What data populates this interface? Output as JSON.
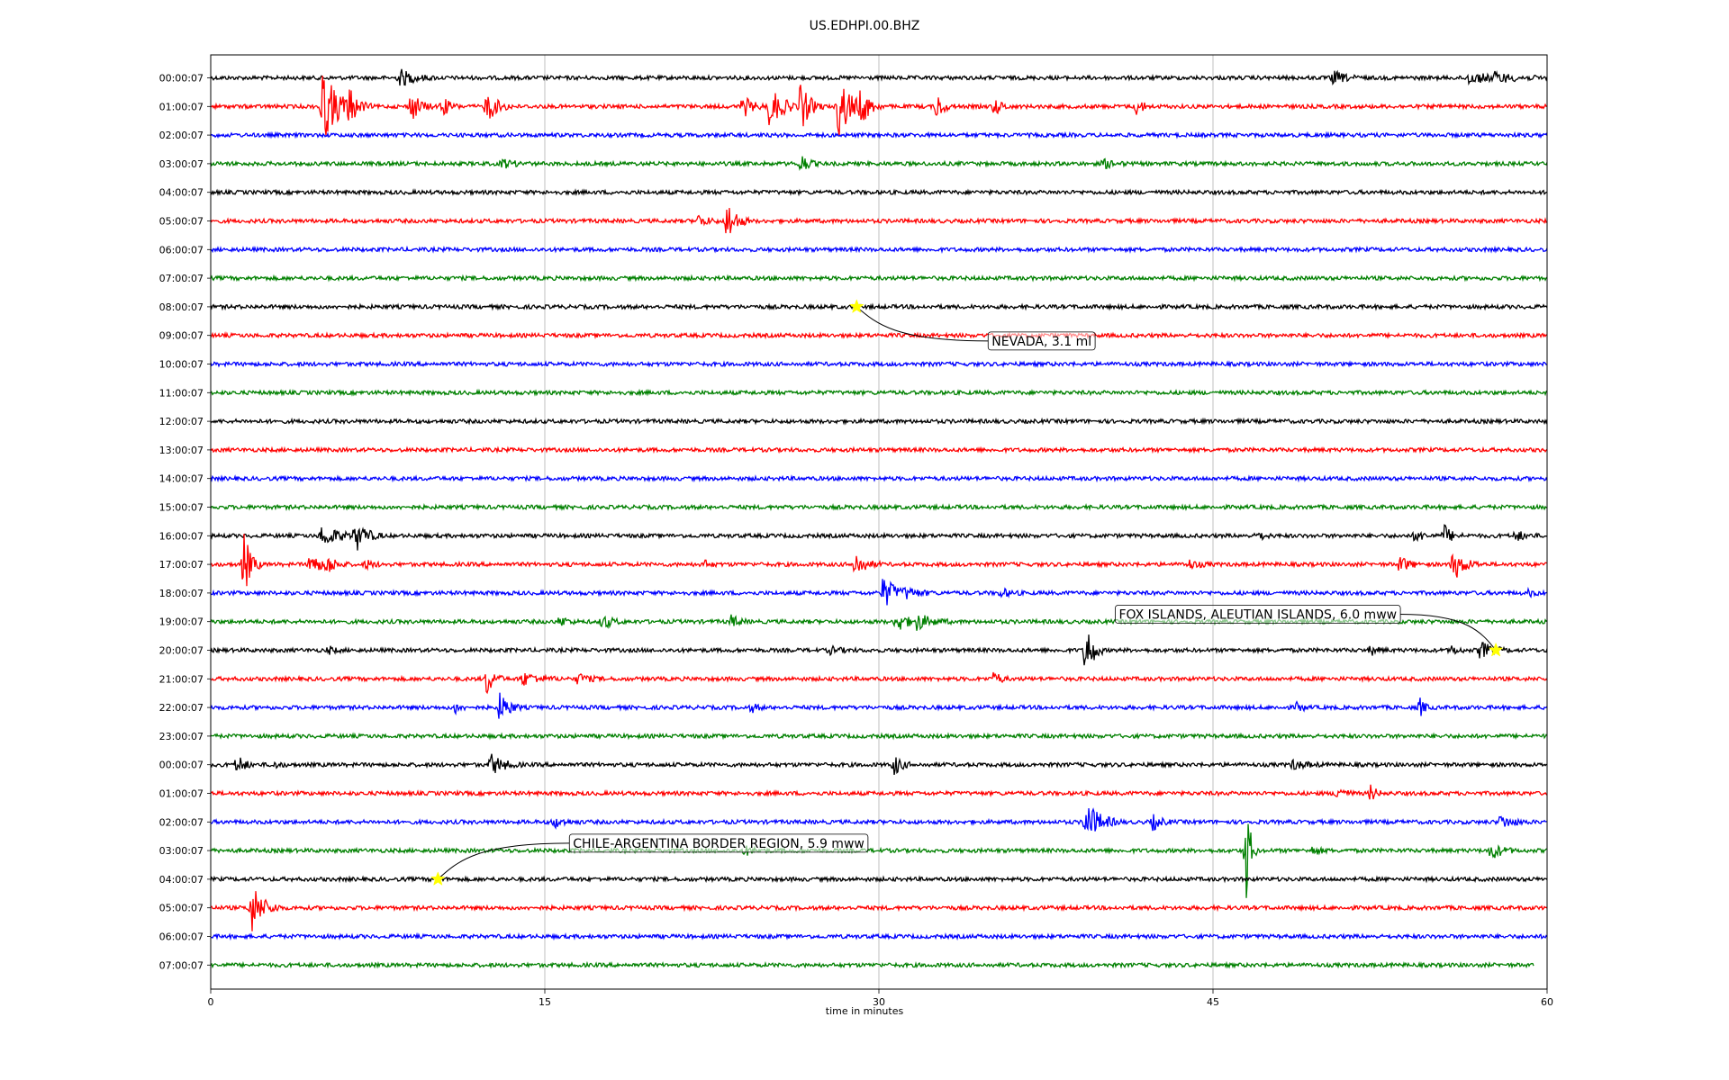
{
  "chart_data": {
    "type": "line",
    "title": "US.EDHPI.00.BHZ",
    "xlabel": "time in minutes",
    "xlim": [
      0,
      60
    ],
    "xticks": [
      "0",
      "15",
      "30",
      "45",
      "60"
    ],
    "grid": "vertical",
    "colors": [
      "#000000",
      "#ff0000",
      "#0000ff",
      "#008000"
    ],
    "rows": [
      {
        "label": "00:00:07",
        "color": "#000000",
        "bursts": [
          [
            8.5,
            1.6,
            0.8
          ],
          [
            50.4,
            1.4,
            0.6
          ],
          [
            56.4,
            3.0,
            0.5
          ],
          [
            57.6,
            2.4,
            0.5
          ]
        ]
      },
      {
        "label": "01:00:07",
        "color": "#ff0000",
        "bursts": [
          [
            5.0,
            2.0,
            3.5
          ],
          [
            6.2,
            1.0,
            2.0
          ],
          [
            9.0,
            1.0,
            1.5
          ],
          [
            10.4,
            0.8,
            1.0
          ],
          [
            12.4,
            1.2,
            1.5
          ],
          [
            23.9,
            1.1,
            1.0
          ],
          [
            25.1,
            1.5,
            2.0
          ],
          [
            26.5,
            1.0,
            2.5
          ],
          [
            28.2,
            1.5,
            3.0
          ],
          [
            29.2,
            1.0,
            2.0
          ],
          [
            32.6,
            0.8,
            1.2
          ],
          [
            35.2,
            0.8,
            0.8
          ],
          [
            41.6,
            0.6,
            1.0
          ]
        ]
      },
      {
        "label": "02:00:07",
        "color": "#0000ff",
        "bursts": []
      },
      {
        "label": "03:00:07",
        "color": "#008000",
        "bursts": [
          [
            13.1,
            1.3,
            0.4
          ],
          [
            26.5,
            0.8,
            1.0
          ],
          [
            40.1,
            1.2,
            0.4
          ]
        ]
      },
      {
        "label": "04:00:07",
        "color": "#000000",
        "bursts": []
      },
      {
        "label": "05:00:07",
        "color": "#ff0000",
        "bursts": [
          [
            21.9,
            1.2,
            0.5
          ],
          [
            23.2,
            1.0,
            2.0
          ]
        ]
      },
      {
        "label": "06:00:07",
        "color": "#0000ff",
        "bursts": []
      },
      {
        "label": "07:00:07",
        "color": "#008000",
        "bursts": []
      },
      {
        "label": "08:00:07",
        "color": "#000000",
        "bursts": []
      },
      {
        "label": "09:00:07",
        "color": "#ff0000",
        "bursts": []
      },
      {
        "label": "10:00:07",
        "color": "#0000ff",
        "bursts": []
      },
      {
        "label": "11:00:07",
        "color": "#008000",
        "bursts": []
      },
      {
        "label": "12:00:07",
        "color": "#000000",
        "bursts": []
      },
      {
        "label": "13:00:07",
        "color": "#ff0000",
        "bursts": []
      },
      {
        "label": "14:00:07",
        "color": "#0000ff",
        "bursts": []
      },
      {
        "label": "15:00:07",
        "color": "#008000",
        "bursts": []
      },
      {
        "label": "16:00:07",
        "color": "#000000",
        "bursts": [
          [
            5.0,
            2.0,
            1.0
          ],
          [
            6.5,
            1.3,
            1.5
          ],
          [
            47.0,
            0.7,
            0.5
          ],
          [
            54.1,
            0.8,
            0.6
          ],
          [
            55.4,
            0.8,
            1.0
          ],
          [
            58.6,
            1.0,
            0.5
          ]
        ]
      },
      {
        "label": "17:00:07",
        "color": "#ff0000",
        "bursts": [
          [
            1.5,
            0.8,
            3.0
          ],
          [
            4.5,
            0.8,
            1.5
          ],
          [
            5.2,
            1.0,
            1.0
          ],
          [
            7.0,
            0.8,
            0.4
          ],
          [
            22.1,
            0.8,
            0.4
          ],
          [
            28.9,
            1.2,
            1.2
          ],
          [
            43.9,
            1.2,
            0.4
          ],
          [
            53.4,
            1.0,
            0.8
          ],
          [
            55.8,
            1.3,
            1.5
          ]
        ]
      },
      {
        "label": "18:00:07",
        "color": "#0000ff",
        "bursts": [
          [
            30.2,
            1.6,
            1.5
          ],
          [
            31.2,
            1.4,
            0.6
          ],
          [
            35.5,
            1.0,
            0.4
          ],
          [
            59.2,
            0.7,
            0.3
          ]
        ]
      },
      {
        "label": "19:00:07",
        "color": "#008000",
        "bursts": [
          [
            15.7,
            0.8,
            0.5
          ],
          [
            17.6,
            1.0,
            0.7
          ],
          [
            23.4,
            0.8,
            0.6
          ],
          [
            30.8,
            1.2,
            1.0
          ],
          [
            31.7,
            1.6,
            0.8
          ]
        ]
      },
      {
        "label": "20:00:07",
        "color": "#000000",
        "bursts": [
          [
            5.3,
            0.8,
            0.3
          ],
          [
            27.8,
            1.3,
            0.3
          ],
          [
            39.3,
            0.8,
            3.0
          ],
          [
            52.1,
            0.8,
            0.4
          ],
          [
            55.7,
            0.8,
            0.4
          ],
          [
            57.0,
            1.4,
            0.8
          ]
        ]
      },
      {
        "label": "21:00:07",
        "color": "#ff0000",
        "bursts": [
          [
            12.4,
            0.8,
            1.5
          ],
          [
            14.0,
            1.8,
            0.6
          ],
          [
            16.5,
            1.2,
            0.5
          ],
          [
            35.2,
            0.6,
            0.8
          ]
        ]
      },
      {
        "label": "22:00:07",
        "color": "#0000ff",
        "bursts": [
          [
            11.0,
            0.6,
            0.5
          ],
          [
            13.0,
            1.0,
            1.5
          ],
          [
            24.3,
            0.7,
            0.4
          ],
          [
            48.8,
            0.6,
            0.5
          ],
          [
            54.3,
            0.6,
            0.8
          ]
        ]
      },
      {
        "label": "23:00:07",
        "color": "#008000",
        "bursts": []
      },
      {
        "label": "00:00:07",
        "color": "#000000",
        "bursts": [
          [
            1.2,
            0.8,
            1.0
          ],
          [
            2.8,
            0.8,
            0.3
          ],
          [
            12.6,
            1.4,
            1.0
          ],
          [
            30.7,
            0.8,
            1.0
          ],
          [
            48.6,
            1.5,
            0.4
          ]
        ]
      },
      {
        "label": "01:00:07",
        "color": "#ff0000",
        "bursts": [
          [
            50.6,
            0.8,
            0.8
          ],
          [
            52.1,
            0.6,
            0.8
          ]
        ]
      },
      {
        "label": "02:00:07",
        "color": "#0000ff",
        "bursts": [
          [
            15.4,
            1.2,
            0.5
          ],
          [
            39.3,
            1.6,
            2.0
          ],
          [
            42.3,
            1.0,
            0.7
          ],
          [
            57.9,
            1.4,
            0.6
          ]
        ]
      },
      {
        "label": "03:00:07",
        "color": "#008000",
        "bursts": [
          [
            24.0,
            1.0,
            0.4
          ],
          [
            46.5,
            0.5,
            5.0
          ],
          [
            49.5,
            0.8,
            0.4
          ],
          [
            57.5,
            1.2,
            0.8
          ]
        ]
      },
      {
        "label": "04:00:07",
        "color": "#000000",
        "bursts": []
      },
      {
        "label": "05:00:07",
        "color": "#ff0000",
        "bursts": [
          [
            1.8,
            1.4,
            2.5
          ]
        ]
      },
      {
        "label": "06:00:07",
        "color": "#0000ff",
        "bursts": []
      },
      {
        "label": "07:00:07",
        "color": "#008000",
        "bursts": []
      }
    ],
    "events": [
      {
        "row": 8,
        "x": 29.0,
        "label": "NEVADA, 3.1 ml",
        "marker_color": "#ffff00"
      },
      {
        "row": 20,
        "x": 57.7,
        "label": "FOX ISLANDS, ALEUTIAN ISLANDS, 6.0 mww",
        "marker_color": "#ffff00"
      },
      {
        "row": 28,
        "x": 10.2,
        "label": "CHILE-ARGENTINA BORDER REGION, 5.9 mww",
        "marker_color": "#ffff00"
      }
    ]
  }
}
